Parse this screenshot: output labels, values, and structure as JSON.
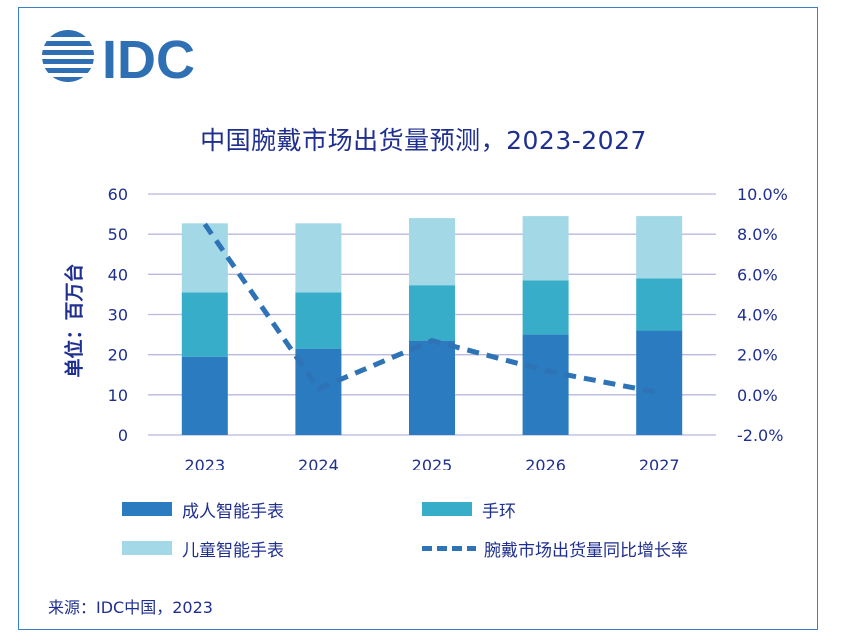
{
  "logo_text": "IDC",
  "colors": {
    "adult": "#2a7bbf",
    "band": "#38adc9",
    "child": "#a3d9e6",
    "growth": "#2e73b5",
    "text": "#1f2f8f",
    "grid": "#b8b8e0"
  },
  "chart_data": {
    "type": "bar",
    "title": "中国腕戴市场出货量预测，2023-2027",
    "ylabel": "单位：百万台",
    "categories": [
      "2023",
      "2024",
      "2025",
      "2026",
      "2027"
    ],
    "ylim": [
      0,
      60
    ],
    "yticks": [
      "0",
      "10",
      "20",
      "30",
      "40",
      "50",
      "60"
    ],
    "y2lim": [
      -2.0,
      10.0
    ],
    "y2ticks": [
      "-2.0%",
      "0.0%",
      "2.0%",
      "4.0%",
      "6.0%",
      "8.0%",
      "10.0%"
    ],
    "series": [
      {
        "name": "成人智能手表",
        "type": "bar",
        "values": [
          19.5,
          21.5,
          23.5,
          25.0,
          26.0
        ]
      },
      {
        "name": "手环",
        "type": "bar",
        "values": [
          16.0,
          14.0,
          13.8,
          13.5,
          13.0
        ]
      },
      {
        "name": "儿童智能手表",
        "type": "bar",
        "values": [
          17.2,
          17.2,
          16.7,
          16.0,
          15.5
        ]
      },
      {
        "name": "腕戴市场出货量同比增长率",
        "type": "line",
        "axis": "right",
        "values": [
          8.5,
          0.3,
          2.7,
          1.2,
          0.1
        ]
      }
    ],
    "source": "来源：IDC中国，2023"
  }
}
